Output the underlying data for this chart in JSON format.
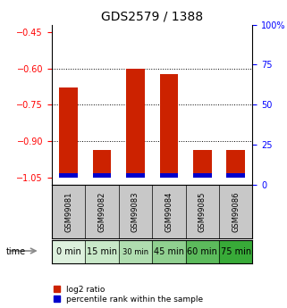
{
  "title": "GDS2579 / 1388",
  "samples": [
    "GSM99081",
    "GSM99082",
    "GSM99083",
    "GSM99084",
    "GSM99085",
    "GSM99086"
  ],
  "time_labels": [
    "0 min",
    "15 min",
    "30 min",
    "45 min",
    "60 min",
    "75 min"
  ],
  "time_bg_colors": [
    "#ddf0dd",
    "#c8e8c8",
    "#b0ddb0",
    "#90d090",
    "#5cba5c",
    "#38aa38"
  ],
  "log2_values": [
    -0.68,
    -0.935,
    -0.6,
    -0.625,
    -0.935,
    -0.935
  ],
  "percentile_values": [
    3.5,
    2.5,
    4.0,
    3.0,
    3.5,
    3.5
  ],
  "bar_bottom": -1.05,
  "ylim_left": [
    -1.08,
    -0.42
  ],
  "ylim_right": [
    0,
    100
  ],
  "yticks_left": [
    -1.05,
    -0.9,
    -0.75,
    -0.6,
    -0.45
  ],
  "yticks_right": [
    0,
    25,
    50,
    75,
    100
  ],
  "grid_values": [
    -0.9,
    -0.75,
    -0.6
  ],
  "red_color": "#cc2200",
  "blue_color": "#0000cc",
  "bar_width": 0.55,
  "sample_bg_color": "#c8c8c8",
  "plot_bg_color": "#ffffff",
  "title_fontsize": 10,
  "tick_fontsize": 7,
  "percentile_bar_height": 0.018
}
